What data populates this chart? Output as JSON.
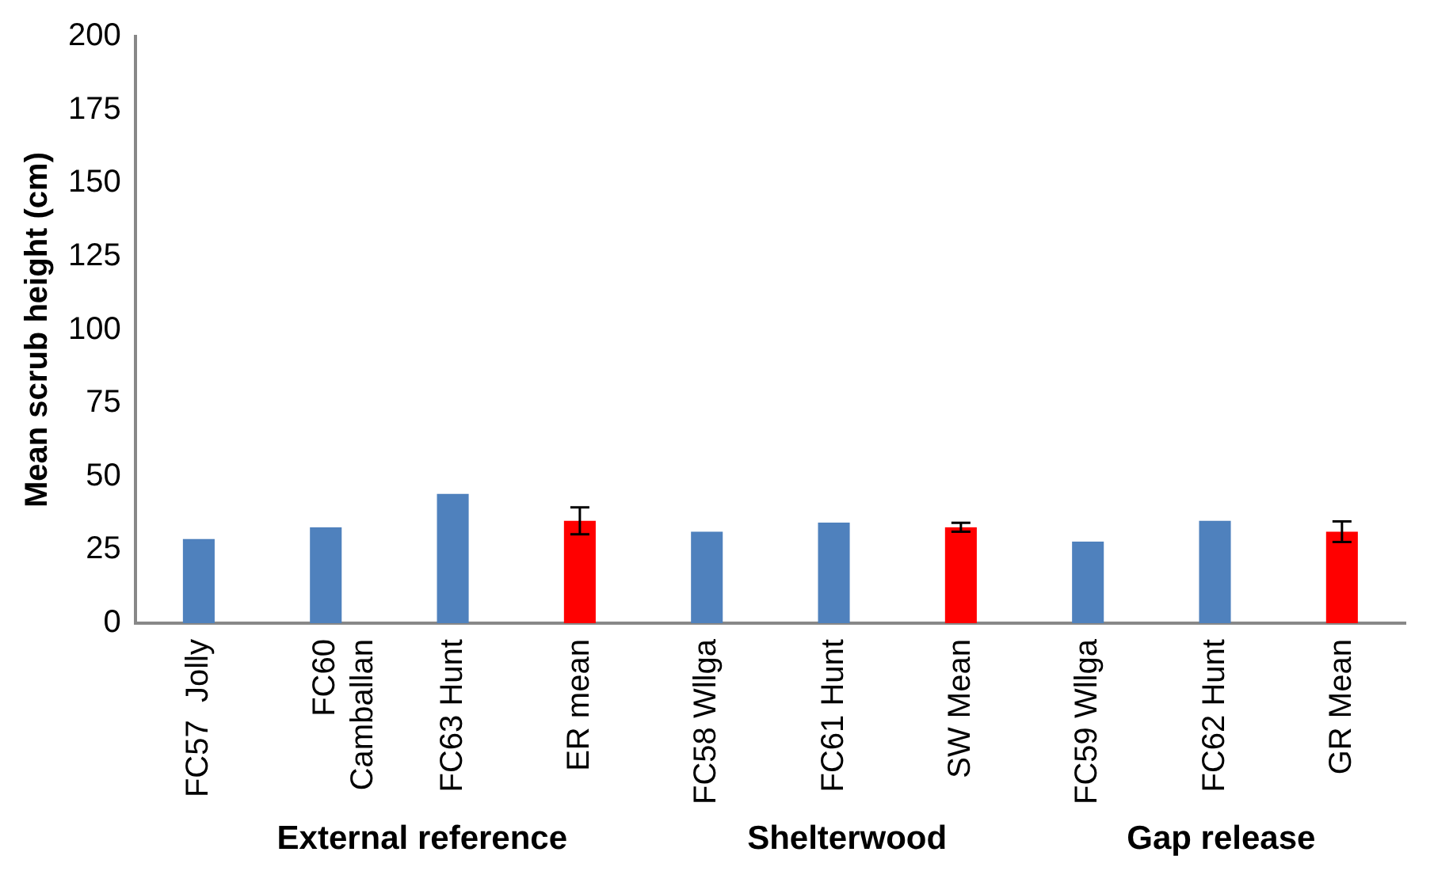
{
  "chart_data": {
    "type": "bar",
    "ylabel": "Mean scrub height (cm)",
    "categories": [
      "FC57  Jolly",
      "FC60 Camballan",
      "FC63 Hunt",
      "ER mean",
      "FC58 Wllga",
      "FC61 Hunt",
      "SW Mean",
      "FC59 Wllga",
      "FC62 Hunt",
      "GR Mean"
    ],
    "values": [
      28.7,
      32.7,
      44.1,
      34.9,
      31.2,
      34.3,
      32.7,
      27.8,
      34.9,
      31.2
    ],
    "colors": [
      "#4f81bd",
      "#4f81bd",
      "#4f81bd",
      "#ff0000",
      "#4f81bd",
      "#4f81bd",
      "#ff0000",
      "#4f81bd",
      "#4f81bd",
      "#ff0000"
    ],
    "errors": [
      null,
      null,
      null,
      4.6,
      null,
      null,
      1.5,
      null,
      null,
      3.5
    ],
    "ylim": [
      0,
      200
    ],
    "yticks": [
      0,
      25,
      50,
      75,
      100,
      125,
      150,
      175,
      200
    ],
    "grid": false,
    "legend": false,
    "annotations": [
      "External reference",
      "Shelterwood",
      "Gap release"
    ]
  }
}
